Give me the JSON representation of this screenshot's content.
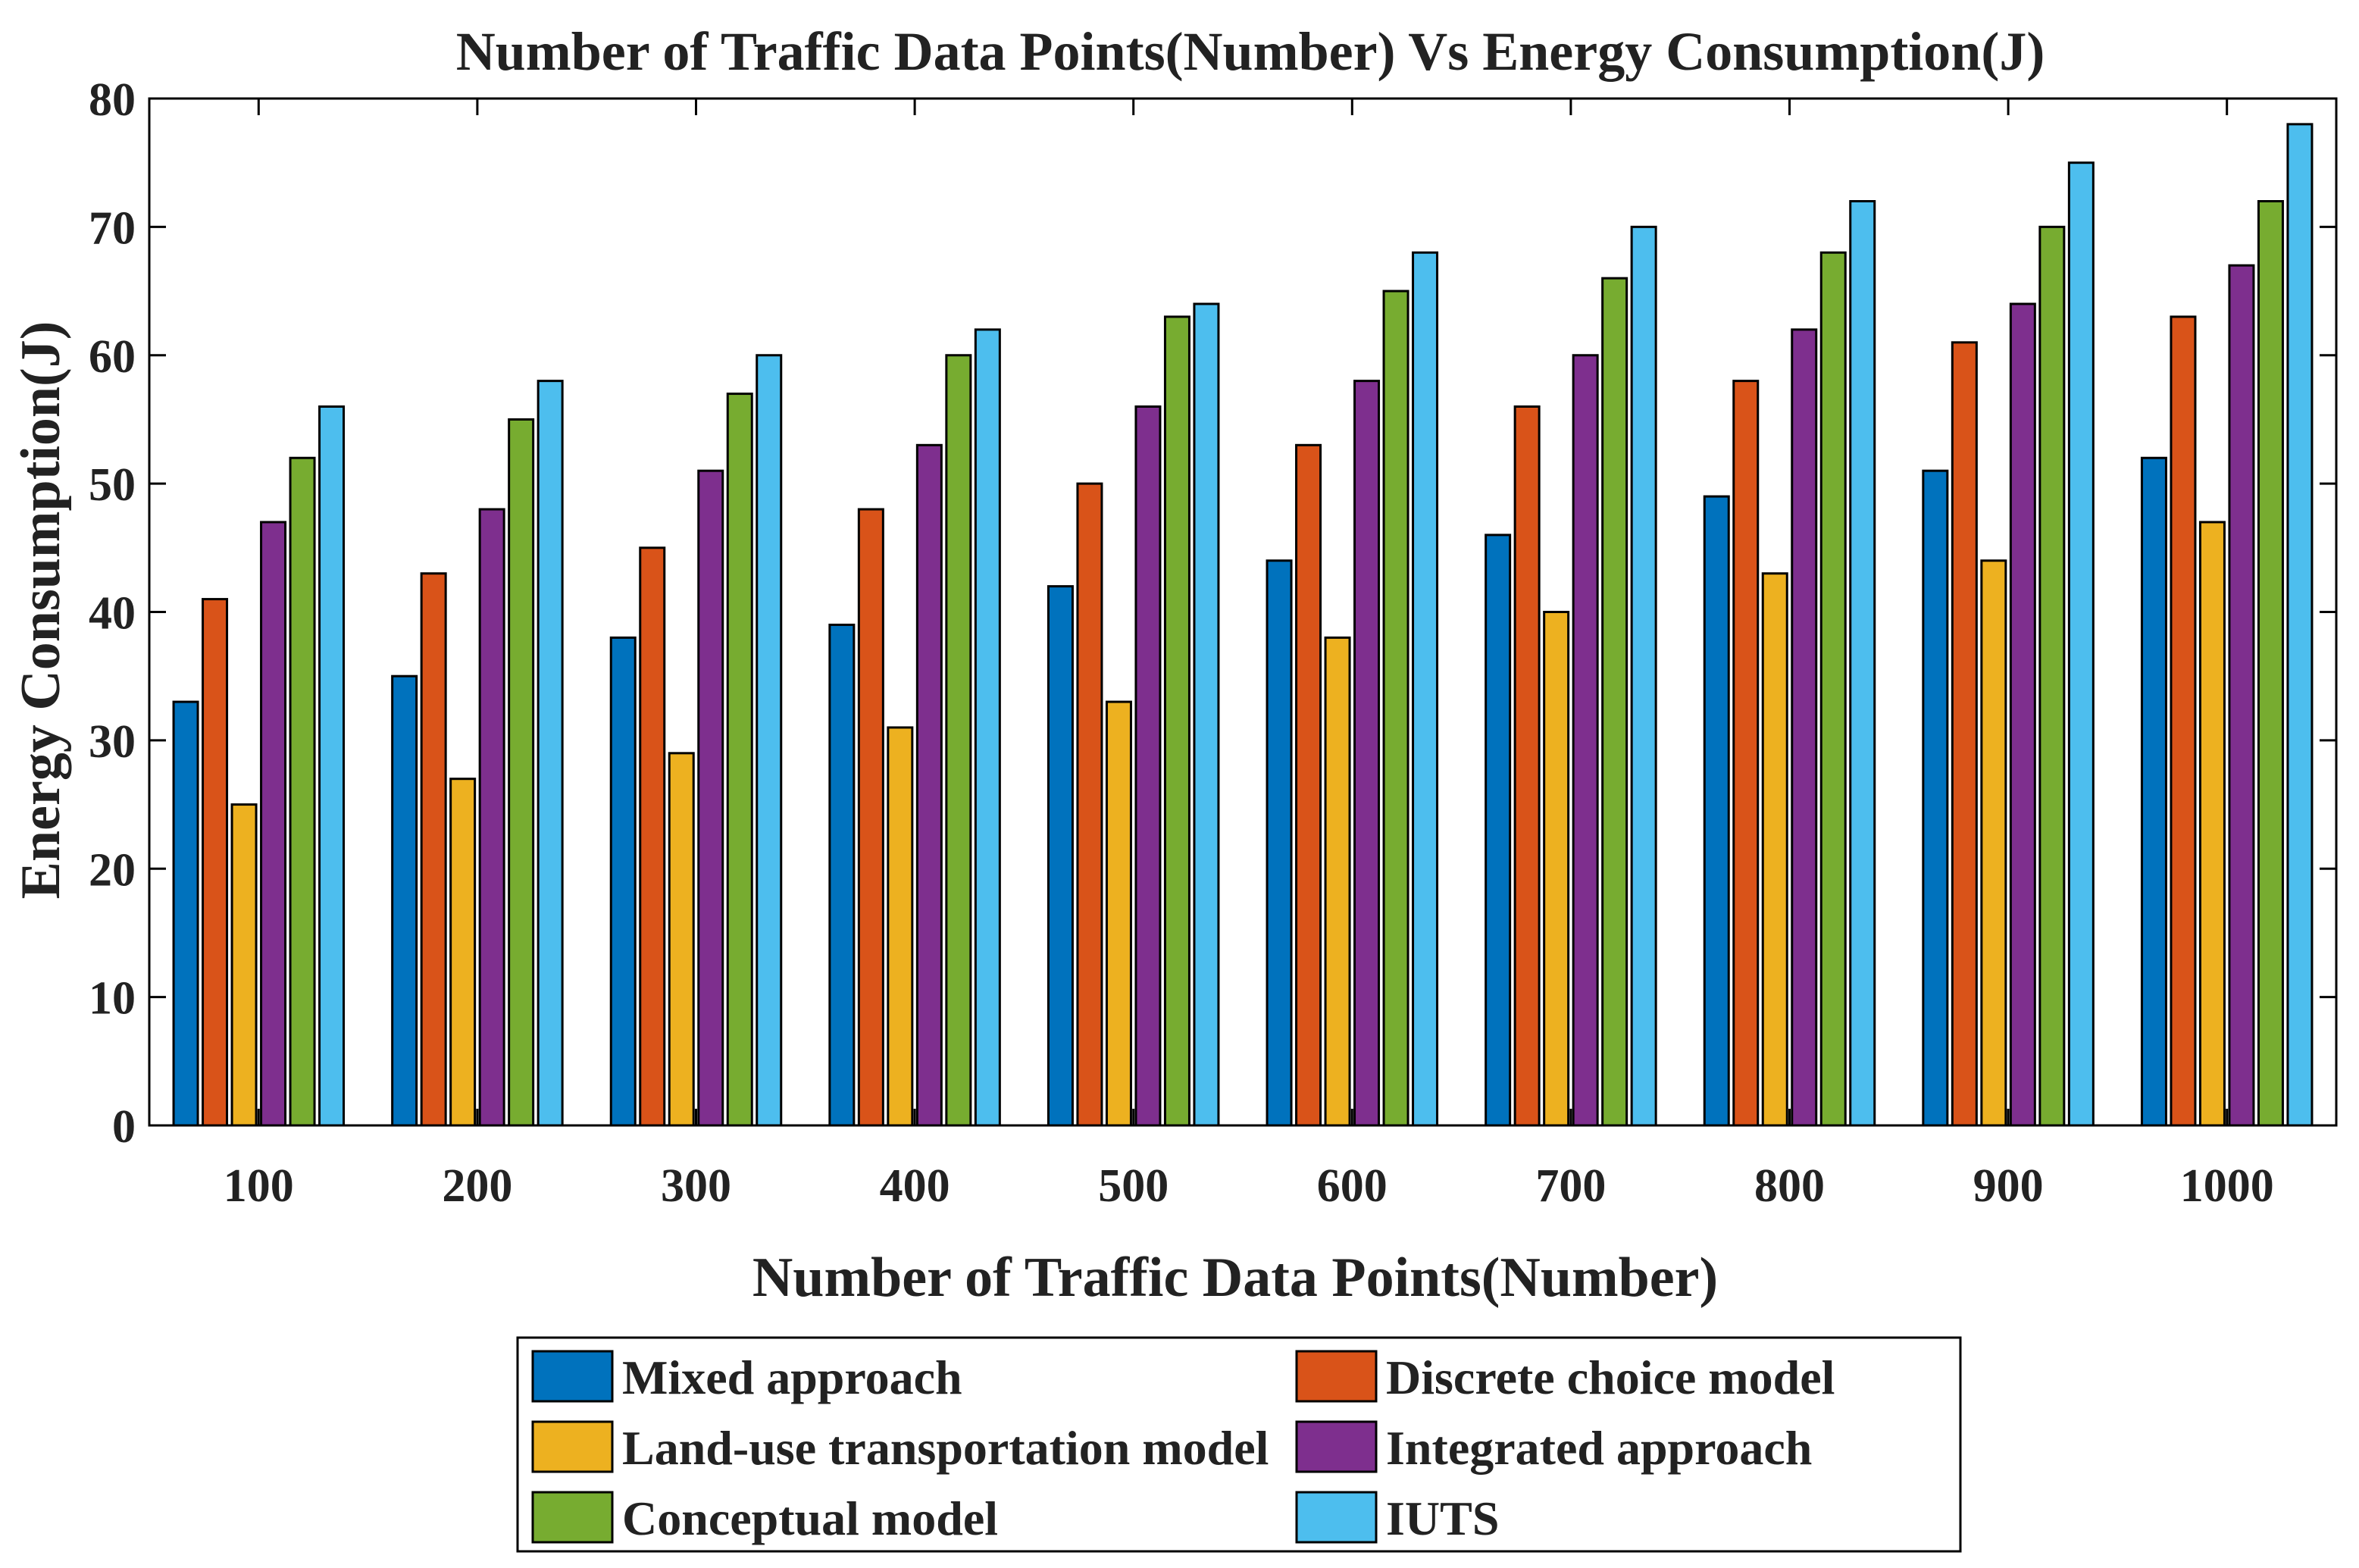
{
  "chart_data": {
    "type": "bar",
    "title": "Number of Traffic Data Points(Number) Vs Energy Consumption(J)",
    "xlabel": "Number of Traffic Data Points(Number)",
    "ylabel": "Energy Consumption(J)",
    "ylim": [
      0,
      80
    ],
    "yticks": [
      "0",
      "10",
      "20",
      "30",
      "40",
      "50",
      "60",
      "70",
      "80"
    ],
    "categories": [
      "100",
      "200",
      "300",
      "400",
      "500",
      "600",
      "700",
      "800",
      "900",
      "1000"
    ],
    "legend_position": "bottom",
    "series": [
      {
        "name": "Mixed approach",
        "color": "#0072BD",
        "values": [
          33,
          35,
          38,
          39,
          42,
          44,
          46,
          49,
          51,
          52
        ]
      },
      {
        "name": "Discrete choice model",
        "color": "#D95319",
        "values": [
          41,
          43,
          45,
          48,
          50,
          53,
          56,
          58,
          61,
          63
        ]
      },
      {
        "name": "Land-use transportation model",
        "color": "#EDB120",
        "values": [
          25,
          27,
          29,
          31,
          33,
          38,
          40,
          43,
          44,
          47
        ]
      },
      {
        "name": "Integrated approach",
        "color": "#7E2F8E",
        "values": [
          47,
          48,
          51,
          53,
          56,
          58,
          60,
          62,
          64,
          67
        ]
      },
      {
        "name": "Conceptual model",
        "color": "#77AC30",
        "values": [
          52,
          55,
          57,
          60,
          63,
          65,
          66,
          68,
          70,
          72
        ]
      },
      {
        "name": "IUTS",
        "color": "#4DBEEE",
        "values": [
          56,
          58,
          60,
          62,
          64,
          68,
          70,
          72,
          75,
          78
        ]
      }
    ]
  }
}
